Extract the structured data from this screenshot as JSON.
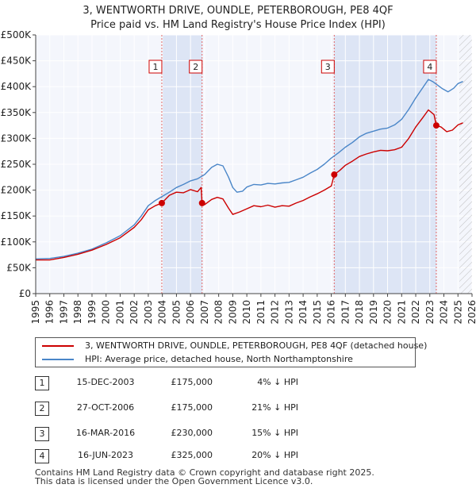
{
  "chart_data": {
    "type": "line",
    "title": "3, WENTWORTH DRIVE, OUNDLE, PETERBOROUGH, PE8 4QF",
    "subtitle": "Price paid vs. HM Land Registry's House Price Index (HPI)",
    "xlim": [
      1995,
      2026
    ],
    "ylim": [
      0,
      500000
    ],
    "x_ticks": [
      "1995",
      "1996",
      "1997",
      "1998",
      "1999",
      "2000",
      "2001",
      "2002",
      "2003",
      "2004",
      "2005",
      "2006",
      "2007",
      "2008",
      "2009",
      "2010",
      "2011",
      "2012",
      "2013",
      "2014",
      "2015",
      "2016",
      "2017",
      "2018",
      "2019",
      "2020",
      "2021",
      "2022",
      "2023",
      "2024",
      "2025",
      "2026"
    ],
    "y_ticks": [
      {
        "value": 0,
        "label": "£0"
      },
      {
        "value": 50000,
        "label": "£50K"
      },
      {
        "value": 100000,
        "label": "£100K"
      },
      {
        "value": 150000,
        "label": "£150K"
      },
      {
        "value": 200000,
        "label": "£200K"
      },
      {
        "value": 250000,
        "label": "£250K"
      },
      {
        "value": 300000,
        "label": "£300K"
      },
      {
        "value": 350000,
        "label": "£350K"
      },
      {
        "value": 400000,
        "label": "£400K"
      },
      {
        "value": 450000,
        "label": "£450K"
      },
      {
        "value": 500000,
        "label": "£500K"
      }
    ],
    "future_from": 2025.1,
    "series": [
      {
        "name": "3, WENTWORTH DRIVE, OUNDLE, PETERBOROUGH, PE8 4QF (detached house)",
        "color": "#cc0000",
        "points": [
          [
            1995.0,
            65000
          ],
          [
            1996.0,
            65000
          ],
          [
            1997.0,
            70000
          ],
          [
            1998.0,
            76000
          ],
          [
            1999.0,
            84000
          ],
          [
            2000.0,
            95000
          ],
          [
            2001.0,
            108000
          ],
          [
            2002.0,
            128000
          ],
          [
            2002.5,
            143000
          ],
          [
            2003.0,
            162000
          ],
          [
            2003.5,
            170000
          ],
          [
            2003.96,
            175000
          ],
          [
            2004.5,
            190000
          ],
          [
            2005.0,
            196000
          ],
          [
            2005.5,
            195000
          ],
          [
            2006.0,
            201000
          ],
          [
            2006.5,
            197000
          ],
          [
            2006.75,
            205000
          ],
          [
            2006.82,
            175000
          ],
          [
            2007.0,
            172000
          ],
          [
            2007.5,
            182000
          ],
          [
            2007.9,
            186000
          ],
          [
            2008.3,
            183000
          ],
          [
            2008.7,
            165000
          ],
          [
            2009.0,
            153000
          ],
          [
            2009.5,
            158000
          ],
          [
            2010.0,
            164000
          ],
          [
            2010.5,
            170000
          ],
          [
            2011.0,
            168000
          ],
          [
            2011.5,
            171000
          ],
          [
            2012.0,
            167000
          ],
          [
            2012.5,
            170000
          ],
          [
            2013.0,
            169000
          ],
          [
            2013.5,
            175000
          ],
          [
            2014.0,
            180000
          ],
          [
            2014.5,
            187000
          ],
          [
            2015.0,
            193000
          ],
          [
            2015.5,
            200000
          ],
          [
            2016.0,
            208000
          ],
          [
            2016.21,
            230000
          ],
          [
            2016.6,
            238000
          ],
          [
            2017.0,
            248000
          ],
          [
            2017.5,
            256000
          ],
          [
            2018.0,
            265000
          ],
          [
            2018.5,
            270000
          ],
          [
            2019.0,
            274000
          ],
          [
            2019.5,
            277000
          ],
          [
            2020.0,
            276000
          ],
          [
            2020.5,
            278000
          ],
          [
            2021.0,
            283000
          ],
          [
            2021.5,
            300000
          ],
          [
            2022.0,
            322000
          ],
          [
            2022.5,
            340000
          ],
          [
            2022.9,
            355000
          ],
          [
            2023.3,
            346000
          ],
          [
            2023.46,
            325000
          ],
          [
            2023.8,
            322000
          ],
          [
            2024.2,
            313000
          ],
          [
            2024.6,
            316000
          ],
          [
            2025.0,
            326000
          ],
          [
            2025.35,
            330000
          ]
        ]
      },
      {
        "name": "HPI: Average price, detached house, North Northamptonshire",
        "color": "#4a86c8",
        "points": [
          [
            1995.0,
            67000
          ],
          [
            1996.0,
            68000
          ],
          [
            1997.0,
            72000
          ],
          [
            1998.0,
            78000
          ],
          [
            1999.0,
            86000
          ],
          [
            2000.0,
            98000
          ],
          [
            2001.0,
            112000
          ],
          [
            2002.0,
            133000
          ],
          [
            2002.5,
            150000
          ],
          [
            2003.0,
            170000
          ],
          [
            2003.5,
            180000
          ],
          [
            2004.0,
            188000
          ],
          [
            2004.5,
            196000
          ],
          [
            2005.0,
            205000
          ],
          [
            2005.5,
            211000
          ],
          [
            2006.0,
            218000
          ],
          [
            2006.5,
            222000
          ],
          [
            2007.0,
            230000
          ],
          [
            2007.5,
            244000
          ],
          [
            2007.9,
            250000
          ],
          [
            2008.3,
            247000
          ],
          [
            2008.7,
            225000
          ],
          [
            2009.0,
            205000
          ],
          [
            2009.3,
            196000
          ],
          [
            2009.7,
            198000
          ],
          [
            2010.0,
            206000
          ],
          [
            2010.5,
            211000
          ],
          [
            2011.0,
            210000
          ],
          [
            2011.5,
            213000
          ],
          [
            2012.0,
            212000
          ],
          [
            2012.5,
            214000
          ],
          [
            2013.0,
            215000
          ],
          [
            2013.5,
            220000
          ],
          [
            2014.0,
            225000
          ],
          [
            2014.5,
            233000
          ],
          [
            2015.0,
            240000
          ],
          [
            2015.5,
            250000
          ],
          [
            2016.0,
            262000
          ],
          [
            2016.5,
            272000
          ],
          [
            2017.0,
            283000
          ],
          [
            2017.5,
            292000
          ],
          [
            2018.0,
            303000
          ],
          [
            2018.5,
            310000
          ],
          [
            2019.0,
            314000
          ],
          [
            2019.5,
            318000
          ],
          [
            2020.0,
            320000
          ],
          [
            2020.5,
            326000
          ],
          [
            2021.0,
            337000
          ],
          [
            2021.5,
            356000
          ],
          [
            2022.0,
            378000
          ],
          [
            2022.5,
            398000
          ],
          [
            2022.9,
            414000
          ],
          [
            2023.2,
            410000
          ],
          [
            2023.5,
            404000
          ],
          [
            2023.9,
            396000
          ],
          [
            2024.3,
            390000
          ],
          [
            2024.7,
            397000
          ],
          [
            2025.0,
            406000
          ],
          [
            2025.35,
            410000
          ]
        ]
      }
    ],
    "sales": [
      {
        "num": "1",
        "x": 2003.96,
        "price": 175000,
        "date": "15-DEC-2003",
        "price_label": "£175,000",
        "hpi": "4% ↓ HPI"
      },
      {
        "num": "2",
        "x": 2006.82,
        "price": 175000,
        "date": "27-OCT-2006",
        "price_label": "£175,000",
        "hpi": "21% ↓ HPI"
      },
      {
        "num": "3",
        "x": 2016.21,
        "price": 230000,
        "date": "16-MAR-2016",
        "price_label": "£230,000",
        "hpi": "15% ↓ HPI"
      },
      {
        "num": "4",
        "x": 2023.46,
        "price": 325000,
        "date": "16-JUN-2023",
        "price_label": "£325,000",
        "hpi": "20% ↓ HPI"
      }
    ]
  },
  "legend": {
    "property_label": "3, WENTWORTH DRIVE, OUNDLE, PETERBOROUGH, PE8 4QF (detached house)",
    "hpi_label": "HPI: Average price, detached house, North Northamptonshire"
  },
  "footer": {
    "line1": "Contains HM Land Registry data © Crown copyright and database right 2025.",
    "line2": "This data is licensed under the Open Government Licence v3.0."
  }
}
